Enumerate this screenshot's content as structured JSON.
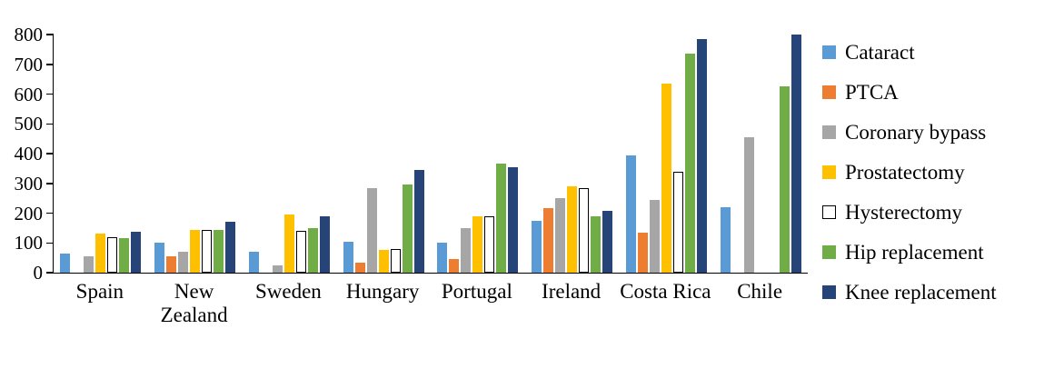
{
  "chart_data": {
    "type": "bar",
    "title": "",
    "xlabel": "",
    "ylabel": "",
    "ylim": [
      0,
      800
    ],
    "ytick_step": 100,
    "grid": false,
    "legend_position": "right",
    "categories": [
      "Spain",
      "New Zealand",
      "Sweden",
      "Hungary",
      "Portugal",
      "Ireland",
      "Costa Rica",
      "Chile"
    ],
    "series": [
      {
        "name": "Cataract",
        "color": "#5B9BD5",
        "values": [
          65,
          100,
          70,
          105,
          100,
          175,
          395,
          220
        ]
      },
      {
        "name": "PTCA",
        "color": "#ED7D31",
        "values": [
          0,
          55,
          0,
          35,
          45,
          218,
          135,
          0
        ]
      },
      {
        "name": "Coronary bypass",
        "color": "#A6A6A6",
        "values": [
          55,
          70,
          25,
          283,
          150,
          250,
          243,
          455
        ]
      },
      {
        "name": "Prostatectomy",
        "color": "#FFC000",
        "values": [
          130,
          145,
          195,
          75,
          190,
          290,
          635,
          0
        ]
      },
      {
        "name": "Hysterectomy",
        "color": "#FFFFFF",
        "border": "#000000",
        "values": [
          120,
          145,
          142,
          78,
          188,
          285,
          340,
          0
        ]
      },
      {
        "name": "Hip replacement",
        "color": "#70AD47",
        "values": [
          115,
          145,
          150,
          297,
          366,
          190,
          735,
          625
        ]
      },
      {
        "name": "Knee replacement",
        "color": "#264478",
        "values": [
          138,
          170,
          188,
          345,
          355,
          207,
          785,
          800
        ]
      }
    ],
    "axis_color": "#000000"
  }
}
